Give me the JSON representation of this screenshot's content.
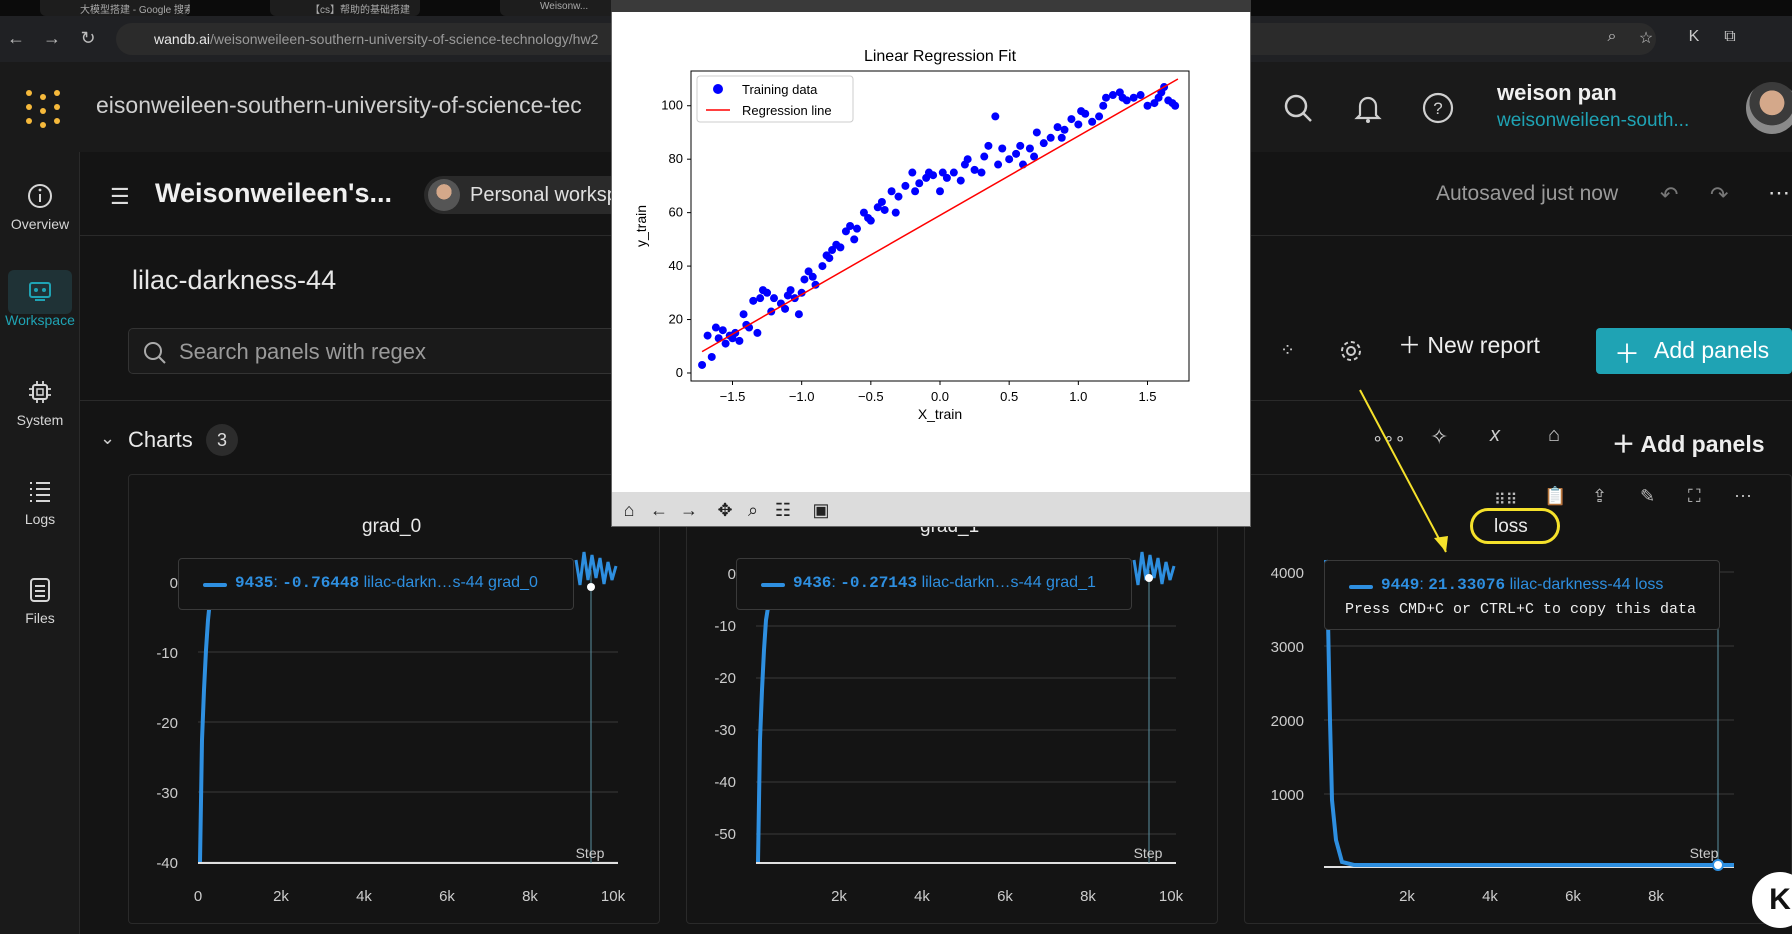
{
  "browser": {
    "tabs": [
      "大模型搭建 - Google 搜索",
      "【cs】帮助的基础搭建",
      "Weisonw..."
    ],
    "url_domain": "wandb.ai",
    "url_path": "/weisonweileen-southern-university-of-science-technology/hw2"
  },
  "header": {
    "entity": "eisonweileen-southern-university-of-science-tec",
    "user_name": "weison pan",
    "user_team": "weisonweileen-south..."
  },
  "leftnav": [
    {
      "label": "Overview",
      "icon": "info-icon"
    },
    {
      "label": "Workspace",
      "icon": "workspace-icon",
      "active": true
    },
    {
      "label": "System",
      "icon": "cpu-icon"
    },
    {
      "label": "Logs",
      "icon": "logs-icon"
    },
    {
      "label": "Files",
      "icon": "file-icon"
    }
  ],
  "workspace": {
    "title": "Weisonweileen's...",
    "badge": "Personal worksp",
    "autosaved": "Autosaved just now",
    "run_name": "lilac-darkness-44",
    "search_placeholder": "Search panels with regex",
    "new_report": "New report",
    "add_panels": "Add panels",
    "section_title": "Charts",
    "section_count": "3",
    "add_panels_section": "Add panels"
  },
  "panels": [
    {
      "title": "grad_0",
      "tooltip": {
        "step": "9435",
        "value": "-0.76448",
        "name": "lilac-darkn…s-44 grad_0"
      },
      "x_ticks": [
        "0",
        "2k",
        "4k",
        "6k",
        "8k",
        "10k"
      ],
      "y_ticks": [
        "0",
        "-10",
        "-20",
        "-30",
        "-40"
      ],
      "step_label": "Step"
    },
    {
      "title": "grad_1",
      "tooltip": {
        "step": "9436",
        "value": "-0.27143",
        "name": "lilac-darkn…s-44 grad_1"
      },
      "x_ticks": [
        "2k",
        "4k",
        "6k",
        "8k",
        "10k"
      ],
      "y_ticks": [
        "0",
        "-10",
        "-20",
        "-30",
        "-40",
        "-50"
      ],
      "step_label": "Step"
    },
    {
      "title": "loss",
      "tooltip": {
        "step": "9449",
        "value": "21.33076",
        "name": "lilac-darkness-44 loss",
        "hint": "Press CMD+C or CTRL+C to copy this data"
      },
      "x_ticks": [
        "2k",
        "4k",
        "6k",
        "8k"
      ],
      "y_ticks": [
        "4000",
        "3000",
        "2000",
        "1000"
      ],
      "step_label": "Step"
    }
  ],
  "mpl": {
    "chart_data": {
      "type": "scatter",
      "title": "Linear Regression Fit",
      "xlabel": "X_train",
      "ylabel": "y_train",
      "xlim": [
        -1.8,
        1.8
      ],
      "ylim": [
        -3,
        113
      ],
      "x_ticks": [
        "−1.5",
        "−1.0",
        "−0.5",
        "0.0",
        "0.5",
        "1.0",
        "1.5"
      ],
      "y_ticks": [
        "0",
        "20",
        "40",
        "60",
        "80",
        "100"
      ],
      "legend": [
        "Training data",
        "Regression line"
      ],
      "legend_position": "upper-left",
      "colors": {
        "points": "#0000ff",
        "line": "#ff0000"
      },
      "line": {
        "x": [
          -1.72,
          1.72
        ],
        "y": [
          8,
          110
        ]
      },
      "series": [
        {
          "name": "Training data",
          "x": [
            -1.72,
            -1.68,
            -1.65,
            -1.62,
            -1.6,
            -1.57,
            -1.55,
            -1.52,
            -1.5,
            -1.48,
            -1.45,
            -1.42,
            -1.4,
            -1.38,
            -1.35,
            -1.32,
            -1.3,
            -1.28,
            -1.25,
            -1.22,
            -1.2,
            -1.15,
            -1.12,
            -1.1,
            -1.08,
            -1.05,
            -1.02,
            -1.0,
            -0.98,
            -0.95,
            -0.92,
            -0.9,
            -0.85,
            -0.82,
            -0.8,
            -0.78,
            -0.75,
            -0.72,
            -0.68,
            -0.65,
            -0.62,
            -0.6,
            -0.55,
            -0.52,
            -0.5,
            -0.45,
            -0.42,
            -0.4,
            -0.35,
            -0.32,
            -0.3,
            -0.25,
            -0.2,
            -0.18,
            -0.15,
            -0.1,
            -0.08,
            -0.05,
            0.0,
            0.02,
            0.05,
            0.1,
            0.15,
            0.18,
            0.2,
            0.25,
            0.3,
            0.32,
            0.35,
            0.4,
            0.42,
            0.45,
            0.5,
            0.55,
            0.58,
            0.6,
            0.65,
            0.68,
            0.7,
            0.75,
            0.8,
            0.85,
            0.88,
            0.9,
            0.95,
            1.0,
            1.02,
            1.05,
            1.1,
            1.15,
            1.18,
            1.2,
            1.25,
            1.3,
            1.32,
            1.35,
            1.4,
            1.45,
            1.5,
            1.55,
            1.58,
            1.6,
            1.62,
            1.65,
            1.68,
            1.7
          ],
          "y": [
            3,
            14,
            6,
            17,
            13,
            16,
            11,
            14,
            13,
            15,
            12,
            22,
            18,
            17,
            27,
            15,
            28,
            31,
            30,
            23,
            28,
            26,
            24,
            29,
            31,
            28,
            22,
            30,
            35,
            38,
            36,
            33,
            40,
            44,
            43,
            46,
            48,
            47,
            53,
            55,
            50,
            54,
            60,
            58,
            57,
            62,
            64,
            61,
            68,
            60,
            66,
            70,
            75,
            68,
            71,
            73,
            75,
            74,
            68,
            75,
            73,
            75,
            72,
            78,
            80,
            76,
            75,
            81,
            85,
            96,
            78,
            84,
            80,
            82,
            85,
            78,
            84,
            81,
            90,
            86,
            88,
            92,
            88,
            91,
            95,
            93,
            98,
            97,
            94,
            96,
            100,
            103,
            104,
            105,
            103,
            102,
            103,
            104,
            100,
            101,
            103,
            105,
            107,
            102,
            101,
            100
          ]
        }
      ]
    }
  }
}
